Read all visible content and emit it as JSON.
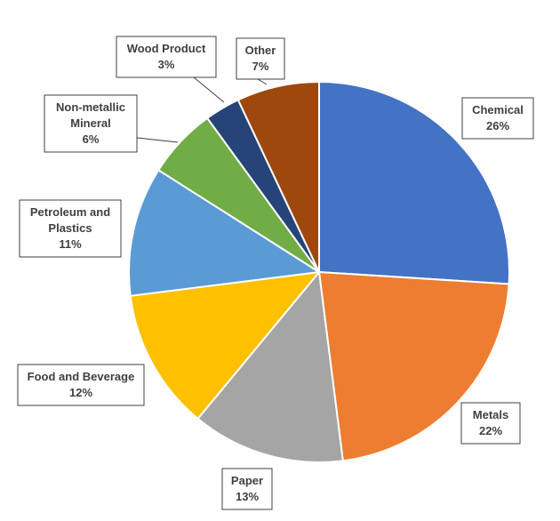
{
  "chart_data": {
    "type": "pie",
    "title": "",
    "slices": [
      {
        "name": "Chemical",
        "value": 26,
        "label": "26%",
        "color": "#4472C4"
      },
      {
        "name": "Metals",
        "value": 22,
        "label": "22%",
        "color": "#ED7D31"
      },
      {
        "name": "Paper",
        "value": 13,
        "label": "13%",
        "color": "#A5A5A5"
      },
      {
        "name": "Food and Beverage",
        "value": 12,
        "label": "12%",
        "color": "#FFC000"
      },
      {
        "name": "Petroleum and Plastics",
        "value": 11,
        "label": "11%",
        "color": "#5B9BD5"
      },
      {
        "name": "Non-metallic Mineral",
        "value": 6,
        "label": "6%",
        "color": "#70AD47"
      },
      {
        "name": "Wood Product",
        "value": 3,
        "label": "3%",
        "color": "#264478"
      },
      {
        "name": "Other",
        "value": 7,
        "label": "7%",
        "color": "#9E480E"
      }
    ],
    "legend": "none"
  }
}
